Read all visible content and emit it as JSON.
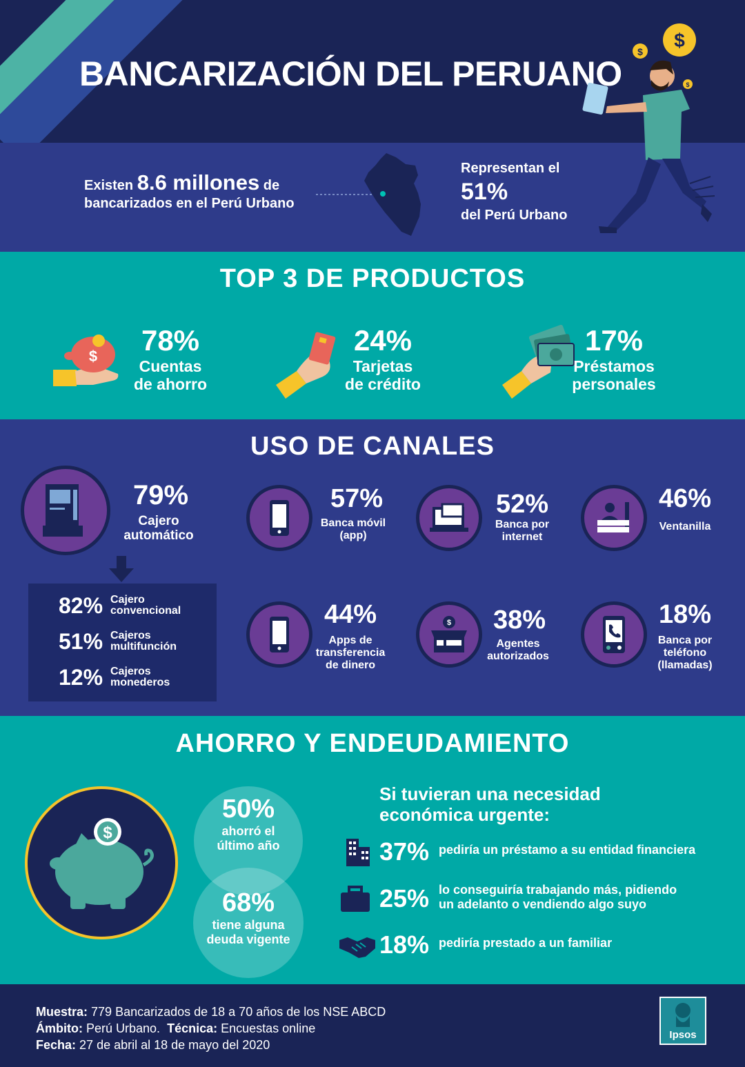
{
  "header": {
    "title": "BANCARIZACIÓN DEL PERUANO",
    "colors": {
      "navy": "#1a2456",
      "teal": "#00a9a6",
      "blue": "#2e3b8a",
      "purple": "#6a3c95",
      "yellow": "#f6c42a"
    }
  },
  "intro": {
    "left_prefix": "Existen",
    "left_big": "8.6 millones",
    "left_suffix": "de",
    "left_line2": "bancarizados en el Perú Urbano",
    "right_line1": "Representan el",
    "right_big": "51%",
    "right_line3": "del Perú Urbano"
  },
  "top3": {
    "title": "TOP 3 DE PRODUCTOS",
    "items": [
      {
        "pct": "78%",
        "line1": "Cuentas",
        "line2": "de ahorro",
        "icon": "piggy-bank-hand-icon"
      },
      {
        "pct": "24%",
        "line1": "Tarjetas",
        "line2": "de crédito",
        "icon": "credit-card-hand-icon"
      },
      {
        "pct": "17%",
        "line1": "Préstamos",
        "line2": "personales",
        "icon": "cash-hand-icon"
      }
    ]
  },
  "canales": {
    "title": "USO DE CANALES",
    "cajero": {
      "pct": "79%",
      "line1": "Cajero",
      "line2": "automático"
    },
    "cajero_breakdown": [
      {
        "pct": "82%",
        "line1": "Cajero",
        "line2": "convencional"
      },
      {
        "pct": "51%",
        "line1": "Cajeros",
        "line2": "multifunción"
      },
      {
        "pct": "12%",
        "line1": "Cajeros",
        "line2": "monederos"
      }
    ],
    "items": [
      {
        "pct": "57%",
        "lines": [
          "Banca móvil",
          "(app)"
        ],
        "icon": "smartphone-icon"
      },
      {
        "pct": "52%",
        "lines": [
          "Banca por",
          "internet"
        ],
        "icon": "laptop-chat-icon"
      },
      {
        "pct": "46%",
        "lines": [
          "Ventanilla"
        ],
        "icon": "teller-window-icon"
      },
      {
        "pct": "44%",
        "lines": [
          "Apps de",
          "transferencia",
          "de dinero"
        ],
        "icon": "smartphone-icon"
      },
      {
        "pct": "38%",
        "lines": [
          "Agentes",
          "autorizados"
        ],
        "icon": "store-agent-icon"
      },
      {
        "pct": "18%",
        "lines": [
          "Banca por",
          "teléfono",
          "(llamadas)"
        ],
        "icon": "phone-call-icon"
      }
    ]
  },
  "ahorro": {
    "title": "AHORRO Y ENDEUDAMIENTO",
    "bubble1": {
      "pct": "50%",
      "line1": "ahorró el",
      "line2": "último año"
    },
    "bubble2": {
      "pct": "68%",
      "line1": "tiene alguna",
      "line2": "deuda vigente"
    },
    "need_title_1": "Si tuvieran una necesidad",
    "need_title_2": "económica urgente:",
    "needs": [
      {
        "pct": "37%",
        "line1": "pediría un préstamo a su entidad financiera",
        "line2": "",
        "icon": "building-icon"
      },
      {
        "pct": "25%",
        "line1": "lo conseguiría trabajando más, pidiendo",
        "line2": "un adelanto o vendiendo algo suyo",
        "icon": "briefcase-icon"
      },
      {
        "pct": "18%",
        "line1": "pediría prestado a un familiar",
        "line2": "",
        "icon": "handshake-icon"
      }
    ]
  },
  "footer": {
    "muestra_label": "Muestra:",
    "muestra": "779 Bancarizados de 18 a 70 años de los NSE ABCD",
    "ambito_label": "Ámbito:",
    "ambito": "Perú Urbano.",
    "tecnica_label": "Técnica:",
    "tecnica": "Encuestas online",
    "fecha_label": "Fecha:",
    "fecha": "27 de abril al 18 de mayo del 2020",
    "logo": "Ipsos"
  }
}
